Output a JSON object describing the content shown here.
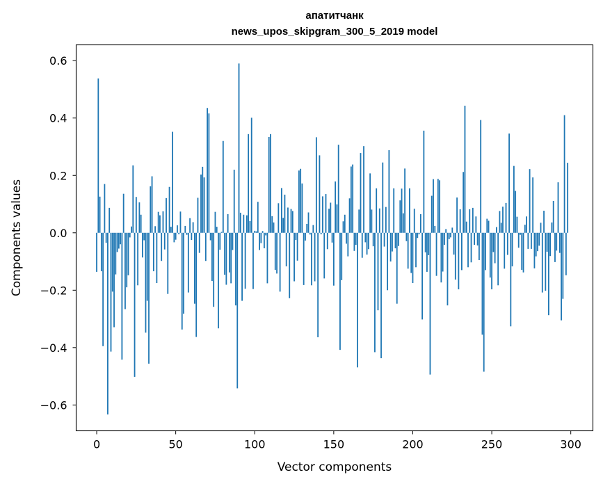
{
  "chart_data": {
    "type": "bar",
    "title": "апатитчанк",
    "subtitle": "news_upos_skipgram_300_5_2019 model",
    "xlabel": "Vector components",
    "ylabel": "Components values",
    "xlim": [
      -13,
      314
    ],
    "ylim": [
      -0.69,
      0.655
    ],
    "xticks": [
      0,
      50,
      100,
      150,
      200,
      250,
      300
    ],
    "yticks": [
      -0.6,
      -0.4,
      -0.2,
      0.0,
      0.2,
      0.4,
      0.6
    ],
    "ytick_labels": [
      "−0.6",
      "−0.4",
      "−0.2",
      "0.0",
      "0.2",
      "0.4",
      "0.6"
    ],
    "bar_color": "#1f77b4",
    "grid": false,
    "values": [
      -0.136,
      0.538,
      0.126,
      -0.134,
      -0.395,
      0.17,
      -0.035,
      -0.633,
      0.087,
      -0.414,
      -0.205,
      -0.329,
      -0.145,
      -0.067,
      -0.055,
      -0.04,
      -0.442,
      0.136,
      -0.266,
      -0.19,
      -0.148,
      -0.016,
      0.022,
      0.235,
      -0.502,
      0.125,
      -0.183,
      0.106,
      0.063,
      -0.086,
      -0.026,
      -0.348,
      -0.237,
      -0.456,
      0.162,
      0.197,
      -0.134,
      0.023,
      -0.175,
      0.073,
      0.061,
      -0.098,
      0.075,
      -0.058,
      0.121,
      -0.213,
      0.16,
      0.021,
      0.352,
      -0.033,
      -0.024,
      0.026,
      -0.005,
      0.074,
      -0.337,
      -0.282,
      0.024,
      -0.007,
      -0.208,
      0.051,
      -0.025,
      0.037,
      -0.247,
      -0.363,
      0.122,
      -0.07,
      0.203,
      0.23,
      0.193,
      -0.098,
      0.435,
      0.416,
      -0.026,
      -0.168,
      -0.258,
      0.073,
      0.021,
      -0.333,
      -0.059,
      0.003,
      0.32,
      -0.146,
      -0.181,
      0.065,
      -0.138,
      -0.176,
      -0.06,
      0.22,
      -0.253,
      -0.542,
      0.59,
      0.07,
      -0.237,
      0.063,
      -0.195,
      0.061,
      0.344,
      0.041,
      0.401,
      -0.196,
      0.007,
      0.005,
      0.108,
      -0.06,
      -0.036,
      0.006,
      -0.054,
      -0.009,
      -0.176,
      0.334,
      0.344,
      0.058,
      0.036,
      -0.129,
      -0.142,
      0.103,
      -0.205,
      0.156,
      0.052,
      0.133,
      -0.117,
      0.088,
      -0.228,
      0.083,
      0.076,
      -0.169,
      -0.025,
      -0.097,
      0.217,
      0.223,
      0.172,
      -0.182,
      -0.027,
      0.031,
      0.071,
      -0.006,
      -0.183,
      0.027,
      -0.169,
      0.333,
      -0.364,
      0.27,
      -0.005,
      0.127,
      -0.159,
      0.135,
      -0.057,
      0.084,
      0.105,
      -0.034,
      -0.184,
      0.179,
      0.099,
      0.307,
      -0.408,
      -0.165,
      0.04,
      0.063,
      -0.038,
      -0.082,
      0.12,
      0.231,
      0.238,
      -0.063,
      -0.042,
      -0.469,
      0.081,
      0.278,
      -0.087,
      0.302,
      -0.033,
      -0.076,
      -0.057,
      0.207,
      0.081,
      -0.047,
      -0.416,
      0.155,
      -0.27,
      0.085,
      -0.437,
      0.245,
      -0.048,
      0.09,
      -0.2,
      0.288,
      -0.1,
      -0.065,
      0.155,
      -0.054,
      -0.247,
      -0.046,
      0.113,
      0.154,
      0.068,
      0.224,
      -0.029,
      -0.125,
      0.155,
      -0.14,
      -0.175,
      0.084,
      -0.12,
      -0.018,
      -0.005,
      0.065,
      -0.302,
      0.356,
      -0.068,
      -0.136,
      -0.078,
      -0.494,
      0.129,
      0.187,
      0.024,
      -0.15,
      0.188,
      0.183,
      -0.173,
      -0.135,
      -0.042,
      0.013,
      -0.253,
      -0.022,
      -0.016,
      0.018,
      -0.076,
      -0.163,
      0.123,
      -0.197,
      0.082,
      -0.13,
      0.212,
      0.443,
      0.039,
      -0.12,
      0.082,
      -0.103,
      0.087,
      -0.042,
      0.057,
      -0.044,
      -0.095,
      0.393,
      -0.355,
      -0.484,
      -0.13,
      0.049,
      0.042,
      -0.156,
      -0.197,
      -0.067,
      -0.106,
      0.02,
      -0.183,
      0.076,
      0.035,
      0.091,
      -0.125,
      0.104,
      -0.077,
      0.346,
      -0.326,
      -0.117,
      0.233,
      0.146,
      0.056,
      -0.052,
      -0.007,
      -0.129,
      -0.138,
      0.028,
      0.057,
      -0.056,
      0.222,
      -0.056,
      0.193,
      -0.124,
      -0.082,
      -0.064,
      -0.045,
      0.035,
      -0.208,
      0.077,
      -0.202,
      -0.066,
      -0.287,
      -0.081,
      0.036,
      0.111,
      -0.102,
      -0.062,
      0.176,
      -0.07,
      -0.305,
      -0.23,
      0.41,
      -0.148,
      0.244
    ]
  }
}
